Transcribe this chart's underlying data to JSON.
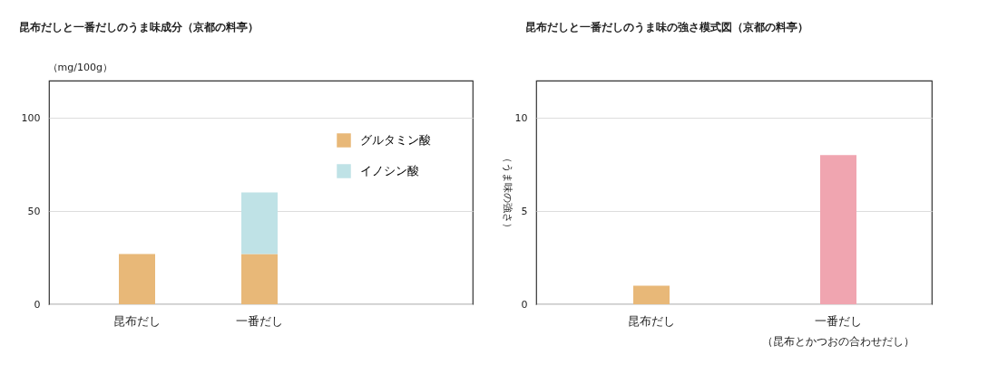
{
  "chart_data": [
    {
      "type": "bar",
      "stacked": true,
      "title": "昆布だしと一番だしのうま味成分（京都の料亭）",
      "ylabel": "（mg/100g）",
      "categories": [
        "昆布だし",
        "一番だし"
      ],
      "series": [
        {
          "name": "グルタミン酸",
          "color": "#e8b878",
          "values": [
            27,
            27
          ]
        },
        {
          "name": "イノシン酸",
          "color": "#bfe2e6",
          "values": [
            null,
            33
          ]
        }
      ],
      "ylim": [
        0,
        120
      ],
      "yticks": [
        0,
        50,
        100
      ],
      "grid": "y",
      "legend": "top right"
    },
    {
      "type": "bar",
      "title": "昆布だしと一番だしのうま味の強さ模式図（京都の料亭）",
      "ylabel": "（うま味の強さ）",
      "categories": [
        "昆布だし",
        "一番だし"
      ],
      "values": [
        1,
        8
      ],
      "colors": [
        "#e8b878",
        "#f0a5b0"
      ],
      "ylim": [
        0,
        12
      ],
      "yticks": [
        0,
        5,
        10
      ],
      "grid": "y",
      "annotations": [
        "（昆布とかつおの合わせだし）"
      ]
    }
  ]
}
